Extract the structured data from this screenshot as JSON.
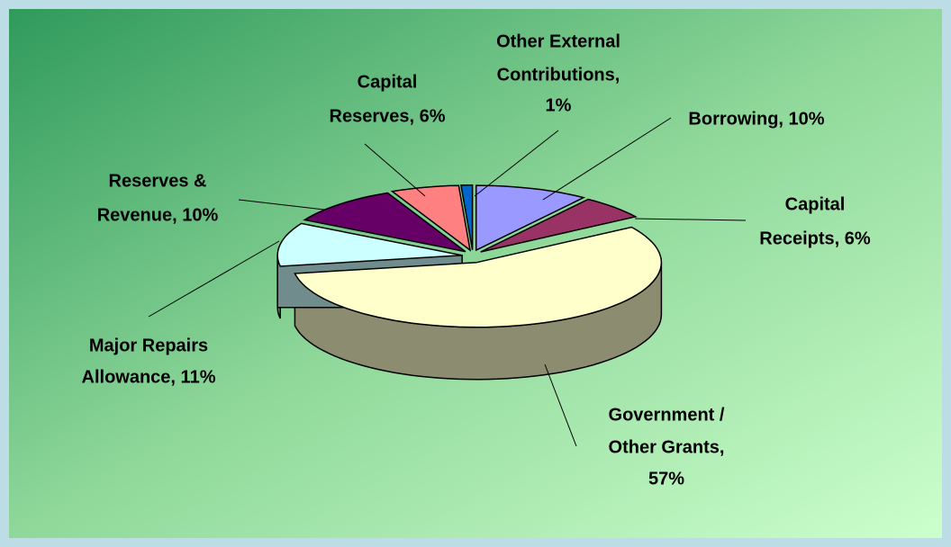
{
  "chart_data": {
    "type": "pie3d",
    "values": [
      10,
      6,
      57,
      11,
      10,
      6,
      1
    ],
    "value_labels": [
      [
        "Borrowing, 10%"
      ],
      [
        "Capital",
        "Receipts, 6%"
      ],
      [
        "Government /",
        "Other Grants,",
        "57%"
      ],
      [
        "Major Repairs",
        "Allowance, 11%"
      ],
      [
        "Reserves &",
        "Revenue, 10%"
      ],
      [
        "Capital",
        "Reserves, 6%"
      ],
      [
        "Other External",
        "Contributions,",
        "1%"
      ]
    ],
    "colors": [
      "#9999ff",
      "#993366",
      "#ffffcc",
      "#ccffff",
      "#660066",
      "#ff8080",
      "#0066cc"
    ]
  }
}
